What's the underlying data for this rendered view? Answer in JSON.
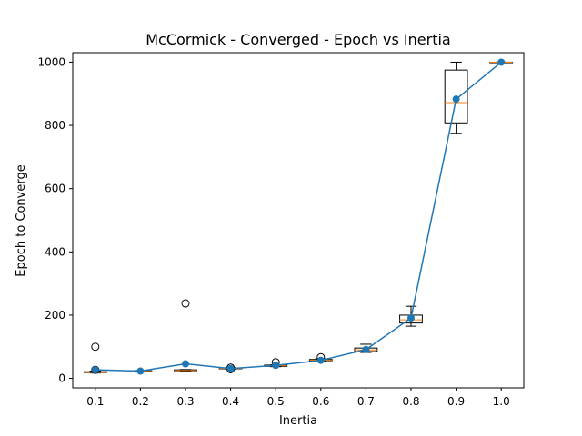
{
  "chart_data": {
    "type": "box+line",
    "title": "McCormick - Converged - Epoch vs Inertia",
    "xlabel": "Inertia",
    "ylabel": "Epoch to Converge",
    "categories": [
      "0.1",
      "0.2",
      "0.3",
      "0.4",
      "0.5",
      "0.6",
      "0.7",
      "0.8",
      "0.9",
      "1.0"
    ],
    "ylim": [
      -30,
      1030
    ],
    "yticks": [
      0,
      200,
      400,
      600,
      800,
      1000
    ],
    "grid": false,
    "legend": "none",
    "boxes": [
      {
        "category": "0.1",
        "whisker_low": 17,
        "q1": 18,
        "median": 19,
        "q3": 21,
        "whisker_high": 23,
        "outliers": [
          100,
          27
        ]
      },
      {
        "category": "0.2",
        "whisker_low": 20,
        "q1": 21,
        "median": 22,
        "q3": 24,
        "whisker_high": 25,
        "outliers": []
      },
      {
        "category": "0.3",
        "whisker_low": 23,
        "q1": 24,
        "median": 25,
        "q3": 27,
        "whisker_high": 28,
        "outliers": [
          237
        ]
      },
      {
        "category": "0.4",
        "whisker_low": 29,
        "q1": 30,
        "median": 31,
        "q3": 33,
        "whisker_high": 34,
        "outliers": [
          34,
          29
        ]
      },
      {
        "category": "0.5",
        "whisker_low": 37,
        "q1": 38,
        "median": 40,
        "q3": 42,
        "whisker_high": 43,
        "outliers": [
          51
        ]
      },
      {
        "category": "0.6",
        "whisker_low": 55,
        "q1": 56,
        "median": 58,
        "q3": 60,
        "whisker_high": 62,
        "outliers": [
          67
        ]
      },
      {
        "category": "0.7",
        "whisker_low": 82,
        "q1": 85,
        "median": 90,
        "q3": 96,
        "whisker_high": 108,
        "outliers": []
      },
      {
        "category": "0.8",
        "whisker_low": 165,
        "q1": 175,
        "median": 185,
        "q3": 200,
        "whisker_high": 228,
        "outliers": []
      },
      {
        "category": "0.9",
        "whisker_low": 775,
        "q1": 808,
        "median": 872,
        "q3": 975,
        "whisker_high": 1000,
        "outliers": []
      },
      {
        "category": "1.0",
        "whisker_low": 1000,
        "q1": 1000,
        "median": 1000,
        "q3": 1000,
        "whisker_high": 1000,
        "outliers": []
      }
    ],
    "series": [
      {
        "type": "line",
        "color": "#1f77b4",
        "values": [
          27,
          23,
          46,
          31,
          41,
          57,
          91,
          191,
          883,
          1000
        ]
      }
    ],
    "colors": {
      "line": "#1f77b4",
      "median": "#ff7f0e",
      "box": "#000000"
    }
  }
}
